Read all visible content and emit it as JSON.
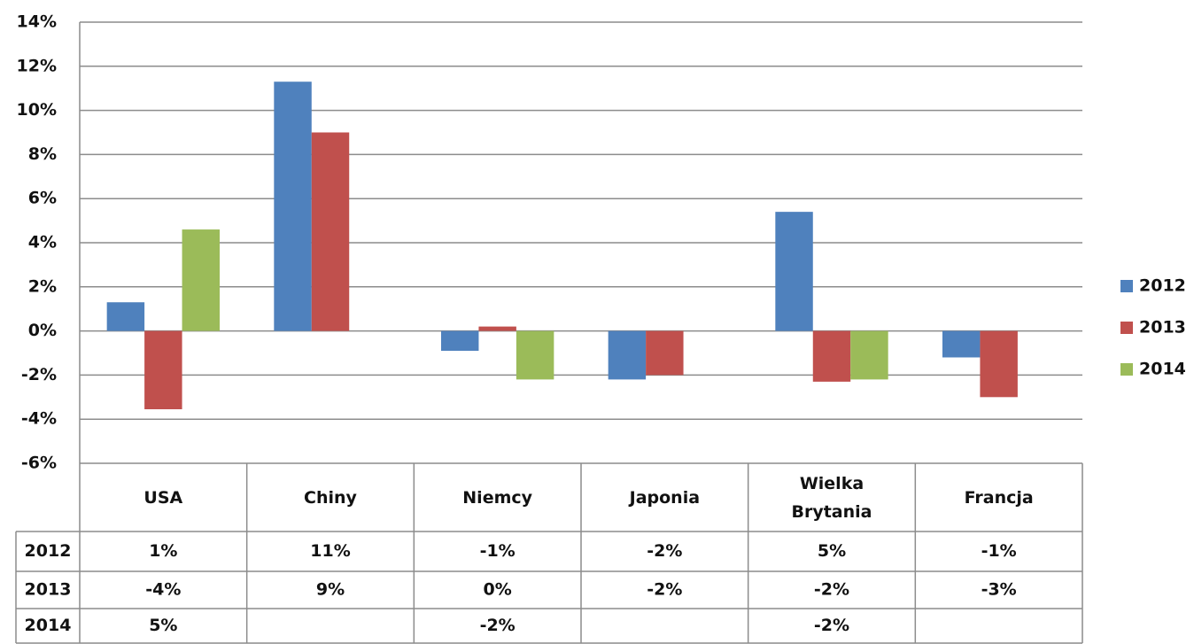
{
  "chart_data": {
    "type": "bar",
    "categories": [
      "USA",
      "Chiny",
      "Niemcy",
      "Japonia",
      "Wielka Brytania",
      "Francja"
    ],
    "series": [
      {
        "name": "2012",
        "color": "#4f81bd",
        "values": [
          1.3,
          11.3,
          -0.9,
          -2.2,
          5.4,
          -1.2
        ],
        "value_labels": [
          "1%",
          "11%",
          "-1%",
          "-2%",
          "5%",
          "-1%"
        ]
      },
      {
        "name": "2013",
        "color": "#c0504d",
        "values": [
          -3.55,
          9.0,
          0.2,
          -2.0,
          -2.3,
          -3.0
        ],
        "value_labels": [
          "-4%",
          "9%",
          "0%",
          "-2%",
          "-2%",
          "-3%"
        ]
      },
      {
        "name": "2014",
        "color": "#9bbb59",
        "values": [
          4.6,
          null,
          -2.2,
          null,
          -2.2,
          null
        ],
        "value_labels": [
          "5%",
          null,
          "-2%",
          null,
          "-2%",
          null
        ]
      }
    ],
    "ylim": [
      -6,
      14
    ],
    "yticks": [
      {
        "value": -6,
        "label": "-6%"
      },
      {
        "value": -4,
        "label": "-4%"
      },
      {
        "value": -2,
        "label": "-2%"
      },
      {
        "value": 0,
        "label": "0%"
      },
      {
        "value": 2,
        "label": "2%"
      },
      {
        "value": 4,
        "label": "4%"
      },
      {
        "value": 6,
        "label": "6%"
      },
      {
        "value": 8,
        "label": "8%"
      },
      {
        "value": 10,
        "label": "10%"
      },
      {
        "value": 12,
        "label": "12%"
      },
      {
        "value": 14,
        "label": "14%"
      }
    ],
    "grid": true,
    "legend": "right",
    "data_table": true
  }
}
